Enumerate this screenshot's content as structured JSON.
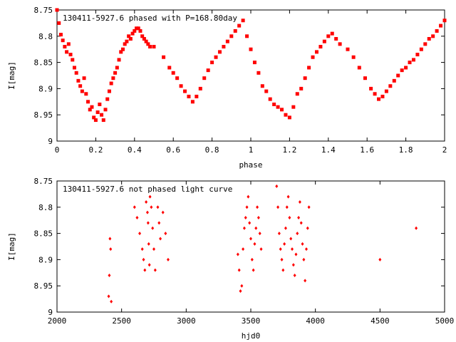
{
  "chart_data": [
    {
      "type": "scatter",
      "title": "130411-5927.6 phased with P=168.80day",
      "xlabel": "phase",
      "ylabel": "I[mag]",
      "xlim": [
        0,
        2
      ],
      "ylim": [
        9,
        8.75
      ],
      "y_inverted": true,
      "xticks": [
        "0",
        "0.2",
        "0.4",
        "0.6",
        "0.8",
        "1",
        "1.2",
        "1.4",
        "1.6",
        "1.8",
        "2"
      ],
      "yticks": [
        "8.75",
        "8.8",
        "8.85",
        "8.9",
        "8.95",
        "9"
      ],
      "marker_color": "#ff0000",
      "grid": false,
      "points": [
        [
          0.0,
          8.75
        ],
        [
          0.01,
          8.775
        ],
        [
          0.02,
          8.797
        ],
        [
          0.03,
          8.808
        ],
        [
          0.04,
          8.82
        ],
        [
          0.05,
          8.83
        ],
        [
          0.06,
          8.815
        ],
        [
          0.07,
          8.835
        ],
        [
          0.08,
          8.845
        ],
        [
          0.09,
          8.86
        ],
        [
          0.1,
          8.87
        ],
        [
          0.11,
          8.885
        ],
        [
          0.12,
          8.895
        ],
        [
          0.13,
          8.905
        ],
        [
          0.14,
          8.88
        ],
        [
          0.15,
          8.91
        ],
        [
          0.16,
          8.925
        ],
        [
          0.17,
          8.94
        ],
        [
          0.18,
          8.935
        ],
        [
          0.19,
          8.955
        ],
        [
          0.2,
          8.96
        ],
        [
          0.21,
          8.945
        ],
        [
          0.22,
          8.93
        ],
        [
          0.23,
          8.95
        ],
        [
          0.24,
          8.96
        ],
        [
          0.25,
          8.94
        ],
        [
          0.26,
          8.92
        ],
        [
          0.27,
          8.905
        ],
        [
          0.28,
          8.89
        ],
        [
          0.29,
          8.88
        ],
        [
          0.3,
          8.87
        ],
        [
          0.31,
          8.86
        ],
        [
          0.32,
          8.845
        ],
        [
          0.33,
          8.83
        ],
        [
          0.34,
          8.825
        ],
        [
          0.35,
          8.815
        ],
        [
          0.36,
          8.81
        ],
        [
          0.37,
          8.8
        ],
        [
          0.38,
          8.805
        ],
        [
          0.39,
          8.795
        ],
        [
          0.4,
          8.79
        ],
        [
          0.41,
          8.785
        ],
        [
          0.42,
          8.785
        ],
        [
          0.43,
          8.79
        ],
        [
          0.44,
          8.8
        ],
        [
          0.45,
          8.805
        ],
        [
          0.46,
          8.81
        ],
        [
          0.47,
          8.815
        ],
        [
          0.48,
          8.82
        ],
        [
          0.5,
          8.82
        ],
        [
          0.55,
          8.84
        ],
        [
          0.58,
          8.86
        ],
        [
          0.6,
          8.87
        ],
        [
          0.62,
          8.88
        ],
        [
          0.64,
          8.895
        ],
        [
          0.66,
          8.905
        ],
        [
          0.68,
          8.915
        ],
        [
          0.7,
          8.925
        ],
        [
          0.72,
          8.915
        ],
        [
          0.74,
          8.9
        ],
        [
          0.76,
          8.88
        ],
        [
          0.78,
          8.865
        ],
        [
          0.8,
          8.85
        ],
        [
          0.82,
          8.84
        ],
        [
          0.84,
          8.83
        ],
        [
          0.86,
          8.82
        ],
        [
          0.88,
          8.81
        ],
        [
          0.9,
          8.8
        ],
        [
          0.92,
          8.79
        ],
        [
          0.94,
          8.78
        ],
        [
          0.96,
          8.77
        ],
        [
          0.98,
          8.8
        ],
        [
          1.0,
          8.825
        ],
        [
          1.02,
          8.85
        ],
        [
          1.04,
          8.87
        ],
        [
          1.06,
          8.895
        ],
        [
          1.08,
          8.905
        ],
        [
          1.1,
          8.92
        ],
        [
          1.12,
          8.93
        ],
        [
          1.14,
          8.935
        ],
        [
          1.16,
          8.94
        ],
        [
          1.18,
          8.95
        ],
        [
          1.2,
          8.955
        ],
        [
          1.22,
          8.935
        ],
        [
          1.24,
          8.91
        ],
        [
          1.26,
          8.9
        ],
        [
          1.28,
          8.88
        ],
        [
          1.3,
          8.86
        ],
        [
          1.32,
          8.84
        ],
        [
          1.34,
          8.83
        ],
        [
          1.36,
          8.82
        ],
        [
          1.38,
          8.81
        ],
        [
          1.4,
          8.8
        ],
        [
          1.42,
          8.795
        ],
        [
          1.44,
          8.805
        ],
        [
          1.46,
          8.815
        ],
        [
          1.5,
          8.825
        ],
        [
          1.53,
          8.84
        ],
        [
          1.56,
          8.86
        ],
        [
          1.59,
          8.88
        ],
        [
          1.62,
          8.9
        ],
        [
          1.64,
          8.91
        ],
        [
          1.66,
          8.92
        ],
        [
          1.68,
          8.915
        ],
        [
          1.7,
          8.905
        ],
        [
          1.72,
          8.895
        ],
        [
          1.74,
          8.885
        ],
        [
          1.76,
          8.875
        ],
        [
          1.78,
          8.865
        ],
        [
          1.8,
          8.86
        ],
        [
          1.82,
          8.85
        ],
        [
          1.84,
          8.845
        ],
        [
          1.86,
          8.835
        ],
        [
          1.88,
          8.825
        ],
        [
          1.9,
          8.815
        ],
        [
          1.92,
          8.805
        ],
        [
          1.94,
          8.8
        ],
        [
          1.96,
          8.79
        ],
        [
          1.98,
          8.78
        ],
        [
          2.0,
          8.77
        ]
      ]
    },
    {
      "type": "scatter",
      "title": "130411-5927.6 not phased light curve",
      "xlabel": "hjd0",
      "ylabel": "I[mag]",
      "xlim": [
        2000,
        5000
      ],
      "ylim": [
        9,
        8.75
      ],
      "y_inverted": true,
      "xticks": [
        "2000",
        "2500",
        "3000",
        "3500",
        "4000",
        "4500",
        "5000"
      ],
      "yticks": [
        "8.75",
        "8.8",
        "8.85",
        "8.9",
        "8.95",
        "9"
      ],
      "marker_color": "#ff0000",
      "grid": false,
      "points": [
        [
          2400,
          8.97
        ],
        [
          2405,
          8.93
        ],
        [
          2410,
          8.86
        ],
        [
          2415,
          8.88
        ],
        [
          2420,
          8.98
        ],
        [
          2600,
          8.8
        ],
        [
          2620,
          8.82
        ],
        [
          2640,
          8.85
        ],
        [
          2660,
          8.88
        ],
        [
          2670,
          8.9
        ],
        [
          2680,
          8.92
        ],
        [
          2690,
          8.79
        ],
        [
          2700,
          8.81
        ],
        [
          2705,
          8.83
        ],
        [
          2710,
          8.87
        ],
        [
          2715,
          8.91
        ],
        [
          2720,
          8.78
        ],
        [
          2730,
          8.8
        ],
        [
          2740,
          8.84
        ],
        [
          2750,
          8.88
        ],
        [
          2760,
          8.92
        ],
        [
          2780,
          8.8
        ],
        [
          2790,
          8.83
        ],
        [
          2800,
          8.86
        ],
        [
          2820,
          8.81
        ],
        [
          2840,
          8.85
        ],
        [
          2860,
          8.9
        ],
        [
          3400,
          8.89
        ],
        [
          3410,
          8.92
        ],
        [
          3420,
          8.96
        ],
        [
          3430,
          8.95
        ],
        [
          3440,
          8.88
        ],
        [
          3450,
          8.84
        ],
        [
          3460,
          8.82
        ],
        [
          3470,
          8.8
        ],
        [
          3480,
          8.78
        ],
        [
          3490,
          8.83
        ],
        [
          3500,
          8.86
        ],
        [
          3510,
          8.9
        ],
        [
          3520,
          8.92
        ],
        [
          3530,
          8.87
        ],
        [
          3540,
          8.84
        ],
        [
          3550,
          8.8
        ],
        [
          3560,
          8.82
        ],
        [
          3570,
          8.85
        ],
        [
          3580,
          8.88
        ],
        [
          3700,
          8.76
        ],
        [
          3710,
          8.8
        ],
        [
          3720,
          8.85
        ],
        [
          3730,
          8.88
        ],
        [
          3740,
          8.9
        ],
        [
          3750,
          8.92
        ],
        [
          3760,
          8.87
        ],
        [
          3770,
          8.84
        ],
        [
          3780,
          8.8
        ],
        [
          3790,
          8.78
        ],
        [
          3800,
          8.82
        ],
        [
          3810,
          8.86
        ],
        [
          3820,
          8.88
        ],
        [
          3830,
          8.91
        ],
        [
          3840,
          8.93
        ],
        [
          3850,
          8.89
        ],
        [
          3860,
          8.85
        ],
        [
          3870,
          8.82
        ],
        [
          3880,
          8.79
        ],
        [
          3890,
          8.83
        ],
        [
          3900,
          8.87
        ],
        [
          3910,
          8.9
        ],
        [
          3920,
          8.94
        ],
        [
          3930,
          8.88
        ],
        [
          3940,
          8.84
        ],
        [
          3950,
          8.8
        ],
        [
          4500,
          8.9
        ],
        [
          4780,
          8.84
        ]
      ]
    }
  ]
}
